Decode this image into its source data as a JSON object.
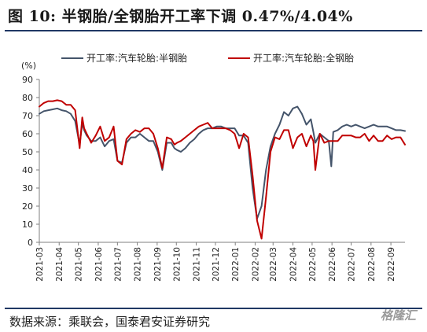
{
  "header": {
    "title": "图 10:  半钢胎/全钢胎开工率下调 0.47%/4.04%"
  },
  "footer": {
    "source": "数据来源：乘联会，国泰君安证券研究",
    "watermark": "格隆汇"
  },
  "colors": {
    "semi_steel": "#44546a",
    "all_steel": "#c00000",
    "frame": "#1f3864"
  },
  "chart_data": {
    "type": "line",
    "ylabel": "(%)",
    "ylim": [
      0,
      90
    ],
    "yticks": [
      0,
      10,
      20,
      30,
      40,
      50,
      60,
      70,
      80,
      90
    ],
    "xticks": [
      "2021-03",
      "2021-04",
      "2021-05",
      "2021-06",
      "2021-07",
      "2021-08",
      "2021-09",
      "2021-10",
      "2021-11",
      "2021-12",
      "2022-01",
      "2022-02",
      "2022-03",
      "2022-04",
      "2022-05",
      "2022-06",
      "2022-07",
      "2022-08",
      "2022-09"
    ],
    "grid": false,
    "legend": "top",
    "series": [
      {
        "name": "开工率:汽车轮胎:半钢胎",
        "color": "#44546a",
        "x": [
          "2021-03-01",
          "2021-03-08",
          "2021-03-15",
          "2021-03-22",
          "2021-03-29",
          "2021-04-05",
          "2021-04-12",
          "2021-04-19",
          "2021-04-26",
          "2021-05-03",
          "2021-05-07",
          "2021-05-10",
          "2021-05-14",
          "2021-05-21",
          "2021-05-28",
          "2021-06-04",
          "2021-06-11",
          "2021-06-18",
          "2021-06-25",
          "2021-07-01",
          "2021-07-08",
          "2021-07-15",
          "2021-07-22",
          "2021-07-29",
          "2021-08-05",
          "2021-08-12",
          "2021-08-19",
          "2021-08-26",
          "2021-09-02",
          "2021-09-09",
          "2021-09-16",
          "2021-09-23",
          "2021-09-28",
          "2021-10-02",
          "2021-10-08",
          "2021-10-15",
          "2021-10-22",
          "2021-10-29",
          "2021-11-05",
          "2021-11-12",
          "2021-11-19",
          "2021-11-26",
          "2021-12-03",
          "2021-12-10",
          "2021-12-17",
          "2021-12-24",
          "2021-12-31",
          "2022-01-07",
          "2022-01-14",
          "2022-01-21",
          "2022-01-28",
          "2022-02-04",
          "2022-02-11",
          "2022-02-18",
          "2022-02-25",
          "2022-03-04",
          "2022-03-11",
          "2022-03-18",
          "2022-03-25",
          "2022-04-01",
          "2022-04-08",
          "2022-04-15",
          "2022-04-22",
          "2022-04-29",
          "2022-05-03",
          "2022-05-06",
          "2022-05-13",
          "2022-05-20",
          "2022-05-27",
          "2022-05-31",
          "2022-06-03",
          "2022-06-10",
          "2022-06-17",
          "2022-06-24",
          "2022-07-01",
          "2022-07-08",
          "2022-07-15",
          "2022-07-22",
          "2022-07-29",
          "2022-08-05",
          "2022-08-12",
          "2022-08-19",
          "2022-08-26",
          "2022-09-02",
          "2022-09-09",
          "2022-09-16",
          "2022-09-23"
        ],
        "values": [
          71,
          72.5,
          73,
          73.5,
          74,
          73,
          72.5,
          71,
          67,
          54,
          66,
          62,
          59,
          56,
          56,
          58,
          53,
          56,
          57,
          45,
          44,
          55,
          58,
          58,
          60,
          58,
          56,
          56,
          50,
          40,
          55,
          55,
          52,
          51,
          50,
          52,
          55,
          57,
          60,
          62,
          63,
          63,
          64,
          64,
          63,
          63,
          63,
          59,
          59,
          55,
          30,
          13,
          20,
          40,
          53,
          60,
          65,
          72,
          70,
          74,
          75,
          71,
          65,
          68,
          61,
          55,
          60,
          58,
          56,
          42,
          61,
          62,
          64,
          65,
          64,
          65,
          64,
          63,
          64,
          65,
          64,
          64,
          64,
          63,
          62,
          62,
          61.5
        ]
      },
      {
        "name": "开工率:汽车轮胎:全钢胎",
        "color": "#c00000",
        "x": [
          "2021-03-01",
          "2021-03-08",
          "2021-03-15",
          "2021-03-22",
          "2021-03-29",
          "2021-04-05",
          "2021-04-12",
          "2021-04-19",
          "2021-04-26",
          "2021-05-03",
          "2021-05-07",
          "2021-05-10",
          "2021-05-14",
          "2021-05-21",
          "2021-05-28",
          "2021-06-04",
          "2021-06-11",
          "2021-06-18",
          "2021-06-25",
          "2021-07-01",
          "2021-07-08",
          "2021-07-15",
          "2021-07-22",
          "2021-07-29",
          "2021-08-05",
          "2021-08-12",
          "2021-08-19",
          "2021-08-26",
          "2021-09-02",
          "2021-09-09",
          "2021-09-16",
          "2021-09-23",
          "2021-09-28",
          "2021-10-02",
          "2021-10-08",
          "2021-10-15",
          "2021-10-22",
          "2021-10-29",
          "2021-11-05",
          "2021-11-12",
          "2021-11-19",
          "2021-11-26",
          "2021-12-03",
          "2021-12-10",
          "2021-12-17",
          "2021-12-24",
          "2021-12-31",
          "2022-01-07",
          "2022-01-14",
          "2022-01-21",
          "2022-01-28",
          "2022-02-04",
          "2022-02-11",
          "2022-02-18",
          "2022-02-25",
          "2022-03-04",
          "2022-03-11",
          "2022-03-18",
          "2022-03-25",
          "2022-04-01",
          "2022-04-08",
          "2022-04-15",
          "2022-04-22",
          "2022-04-29",
          "2022-05-03",
          "2022-05-06",
          "2022-05-13",
          "2022-05-20",
          "2022-05-27",
          "2022-05-31",
          "2022-06-03",
          "2022-06-10",
          "2022-06-17",
          "2022-06-24",
          "2022-07-01",
          "2022-07-08",
          "2022-07-15",
          "2022-07-22",
          "2022-07-29",
          "2022-08-05",
          "2022-08-12",
          "2022-08-19",
          "2022-08-26",
          "2022-09-02",
          "2022-09-09",
          "2022-09-16",
          "2022-09-23"
        ],
        "values": [
          75,
          77,
          78,
          78,
          78.5,
          78,
          76,
          76,
          73,
          52,
          69,
          63,
          60,
          55,
          59,
          64,
          56,
          58,
          64,
          45,
          43,
          57,
          60,
          62,
          61,
          63,
          63,
          60,
          52,
          41,
          58,
          57,
          54,
          55,
          56,
          58,
          60,
          62,
          64,
          65,
          66,
          63,
          63,
          63,
          63,
          62,
          60,
          52,
          60,
          58,
          37,
          12,
          2,
          25,
          50,
          58,
          57,
          62,
          62,
          52,
          58,
          60,
          53,
          59,
          56,
          40,
          60,
          55,
          56,
          56,
          56,
          56,
          59,
          59,
          59,
          58,
          58,
          60,
          56,
          59,
          56,
          56,
          59,
          57,
          58,
          58,
          54
        ]
      }
    ]
  }
}
